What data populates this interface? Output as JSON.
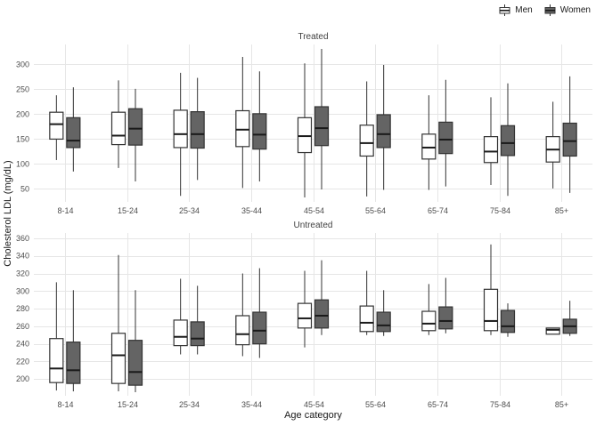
{
  "chart_data": {
    "type": "boxplot",
    "xlabel": "Age category",
    "ylabel": "Cholesterol LDL (mg/dL)",
    "categories": [
      "8-14",
      "15-24",
      "25-34",
      "35-44",
      "45-54",
      "55-64",
      "65-74",
      "75-84",
      "85+"
    ],
    "grid": true,
    "legend": {
      "position": "top-right",
      "entries": [
        {
          "label": "Men",
          "fill": "#ffffff"
        },
        {
          "label": "Women",
          "fill": "#646464"
        }
      ]
    },
    "colors": {
      "grid": "#e6e6e6",
      "box_stroke": "#333333",
      "median": "#1a1a1a",
      "tick_text": "#4d4d4d",
      "men_fill": "#ffffff",
      "women_fill": "#646464"
    },
    "facets": [
      {
        "title": "Treated",
        "ylim": [
          24,
          340
        ],
        "yticks": [
          50,
          100,
          150,
          200,
          250,
          300
        ],
        "series": [
          {
            "name": "Men",
            "boxes": [
              {
                "low": 108,
                "q1": 150,
                "median": 180,
                "q3": 204,
                "high": 238
              },
              {
                "low": 92,
                "q1": 139,
                "median": 157,
                "q3": 204,
                "high": 268
              },
              {
                "low": 36,
                "q1": 133,
                "median": 160,
                "q3": 208,
                "high": 283
              },
              {
                "low": 52,
                "q1": 135,
                "median": 169,
                "q3": 207,
                "high": 315
              },
              {
                "low": 33,
                "q1": 123,
                "median": 156,
                "q3": 193,
                "high": 302
              },
              {
                "low": 35,
                "q1": 116,
                "median": 142,
                "q3": 178,
                "high": 266
              },
              {
                "low": 48,
                "q1": 110,
                "median": 133,
                "q3": 160,
                "high": 238
              },
              {
                "low": 58,
                "q1": 103,
                "median": 125,
                "q3": 155,
                "high": 234
              },
              {
                "low": 51,
                "q1": 104,
                "median": 129,
                "q3": 155,
                "high": 225
              }
            ]
          },
          {
            "name": "Women",
            "boxes": [
              {
                "low": 85,
                "q1": 133,
                "median": 147,
                "q3": 193,
                "high": 254
              },
              {
                "low": 65,
                "q1": 138,
                "median": 171,
                "q3": 211,
                "high": 251
              },
              {
                "low": 68,
                "q1": 132,
                "median": 160,
                "q3": 205,
                "high": 273
              },
              {
                "low": 65,
                "q1": 130,
                "median": 159,
                "q3": 201,
                "high": 286
              },
              {
                "low": 49,
                "q1": 137,
                "median": 172,
                "q3": 215,
                "high": 331
              },
              {
                "low": 48,
                "q1": 133,
                "median": 160,
                "q3": 199,
                "high": 299
              },
              {
                "low": 55,
                "q1": 121,
                "median": 149,
                "q3": 184,
                "high": 269
              },
              {
                "low": 36,
                "q1": 117,
                "median": 142,
                "q3": 177,
                "high": 262
              },
              {
                "low": 42,
                "q1": 116,
                "median": 146,
                "q3": 182,
                "high": 276
              }
            ]
          }
        ]
      },
      {
        "title": "Untreated",
        "ylim": [
          181,
          366
        ],
        "yticks": [
          200,
          220,
          240,
          260,
          280,
          300,
          320,
          340,
          360
        ],
        "series": [
          {
            "name": "Men",
            "boxes": [
              {
                "low": 187,
                "q1": 196,
                "median": 212,
                "q3": 246,
                "high": 310
              },
              {
                "low": 186,
                "q1": 195,
                "median": 227,
                "q3": 252,
                "high": 341
              },
              {
                "low": 228,
                "q1": 238,
                "median": 248,
                "q3": 267,
                "high": 314
              },
              {
                "low": 226,
                "q1": 239,
                "median": 251,
                "q3": 272,
                "high": 320
              },
              {
                "low": 236,
                "q1": 258,
                "median": 269,
                "q3": 286,
                "high": 323
              },
              {
                "low": 250,
                "q1": 254,
                "median": 264,
                "q3": 283,
                "high": 323
              },
              {
                "low": 250,
                "q1": 255,
                "median": 263,
                "q3": 277,
                "high": 308
              },
              {
                "low": 250,
                "q1": 255,
                "median": 266,
                "q3": 302,
                "high": 353
              },
              {
                "low": 251,
                "q1": 251,
                "median": 256,
                "q3": 258,
                "high": 258
              }
            ]
          },
          {
            "name": "Women",
            "boxes": [
              {
                "low": 186,
                "q1": 195,
                "median": 210,
                "q3": 242,
                "high": 301
              },
              {
                "low": 185,
                "q1": 193,
                "median": 208,
                "q3": 244,
                "high": 301
              },
              {
                "low": 228,
                "q1": 238,
                "median": 246,
                "q3": 265,
                "high": 306
              },
              {
                "low": 224,
                "q1": 240,
                "median": 255,
                "q3": 276,
                "high": 326
              },
              {
                "low": 250,
                "q1": 258,
                "median": 272,
                "q3": 290,
                "high": 335
              },
              {
                "low": 249,
                "q1": 254,
                "median": 261,
                "q3": 276,
                "high": 301
              },
              {
                "low": 252,
                "q1": 257,
                "median": 266,
                "q3": 282,
                "high": 315
              },
              {
                "low": 248,
                "q1": 253,
                "median": 260,
                "q3": 278,
                "high": 286
              },
              {
                "low": 249,
                "q1": 252,
                "median": 260,
                "q3": 268,
                "high": 289
              }
            ]
          }
        ]
      }
    ]
  }
}
